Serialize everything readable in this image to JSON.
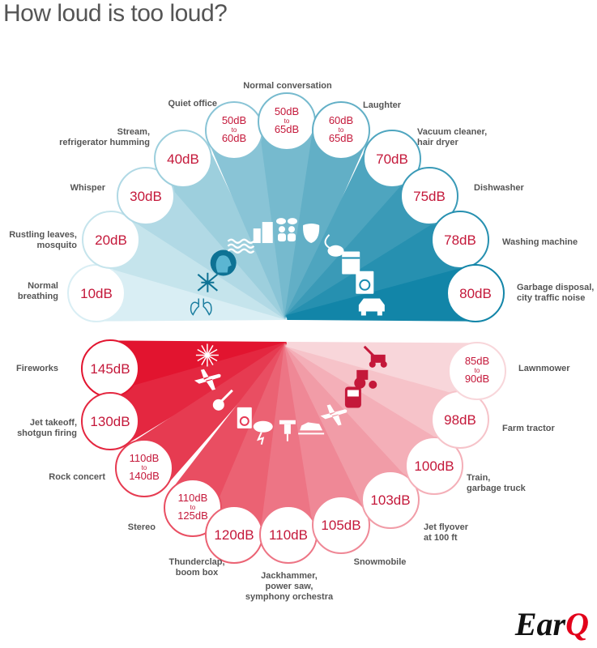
{
  "title": "How loud is too loud?",
  "logo": {
    "text": "Ear",
    "accent": "Q"
  },
  "colors": {
    "blue_dark": "#1285a8",
    "blue_light": "#d9eef4",
    "red_dark": "#e2142f",
    "red_light": "#f8d6da",
    "db_text": "#c4183a",
    "ring": "#9fd3e2"
  },
  "quiet": [
    {
      "label": [
        "Normal",
        "breathing"
      ],
      "level": "10dB",
      "icon": "lungs-icon"
    },
    {
      "label": [
        "Rustling leaves,",
        "mosquito"
      ],
      "level": "20dB",
      "icon": "mosquito-icon"
    },
    {
      "label": [
        "Whisper"
      ],
      "level": "30dB",
      "icon": "whisper-head-icon"
    },
    {
      "label": [
        "Stream,",
        "refrigerator humming"
      ],
      "level": "40dB",
      "icon": "waves-icon"
    },
    {
      "label": [
        "Quiet office"
      ],
      "level": [
        "50dB",
        "to",
        "60dB"
      ],
      "icon": "building-icon"
    },
    {
      "label": [
        "Normal conversation"
      ],
      "level": [
        "50dB",
        "to",
        "65dB"
      ],
      "icon": "people-talking-icon"
    },
    {
      "label": [
        "Laughter"
      ],
      "level": [
        "60dB",
        "to",
        "65dB"
      ],
      "icon": "comedy-mask-icon"
    },
    {
      "label": [
        "Vacuum cleaner,",
        "hair dryer"
      ],
      "level": "70dB",
      "icon": "vacuum-icon"
    },
    {
      "label": [
        "Dishwasher"
      ],
      "level": "75dB",
      "icon": "dishwasher-icon"
    },
    {
      "label": [
        "Washing machine"
      ],
      "level": "78dB",
      "icon": "washing-machine-icon"
    },
    {
      "label": [
        "Garbage disposal,",
        "city traffic noise"
      ],
      "level": "80dB",
      "icon": "car-icon"
    }
  ],
  "loud": [
    {
      "label": [
        "Fireworks"
      ],
      "level": "145dB",
      "icon": "fireworks-icon"
    },
    {
      "label": [
        "Jet takeoff,",
        "shotgun firing"
      ],
      "level": "130dB",
      "icon": "airplane-icon"
    },
    {
      "label": [
        "Rock concert"
      ],
      "level": [
        "110dB",
        "to",
        "140dB"
      ],
      "icon": "guitar-icon"
    },
    {
      "label": [
        "Stereo"
      ],
      "level": [
        "110dB",
        "to",
        "125dB"
      ],
      "icon": "speaker-icon"
    },
    {
      "label": [
        "Thunderclap,",
        "boom box"
      ],
      "level": "120dB",
      "icon": "thunder-icon"
    },
    {
      "label": [
        "Jackhammer,",
        "power saw,",
        "symphony orchestra"
      ],
      "level": "110dB",
      "icon": "jackhammer-icon"
    },
    {
      "label": [
        "Snowmobile"
      ],
      "level": "105dB",
      "icon": "snowmobile-icon"
    },
    {
      "label": [
        "Jet flyover",
        "at 100 ft"
      ],
      "level": "103dB",
      "icon": "jet-icon"
    },
    {
      "label": [
        "Train,",
        "garbage truck"
      ],
      "level": "100dB",
      "icon": "train-icon"
    },
    {
      "label": [
        "Farm tractor"
      ],
      "level": "98dB",
      "icon": "tractor-icon"
    },
    {
      "label": [
        "Lawnmower"
      ],
      "level": [
        "85dB",
        "to",
        "90dB"
      ],
      "icon": "lawnmower-icon"
    }
  ]
}
